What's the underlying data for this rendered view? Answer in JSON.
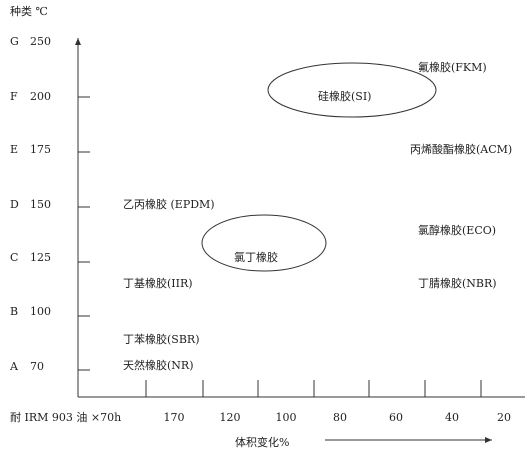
{
  "header": {
    "title": "种类 ℃"
  },
  "y_axis": {
    "levels": [
      {
        "grade": "G",
        "temp": "250"
      },
      {
        "grade": "F",
        "temp": "200"
      },
      {
        "grade": "E",
        "temp": "175"
      },
      {
        "grade": "D",
        "temp": "150"
      },
      {
        "grade": "C",
        "temp": "125"
      },
      {
        "grade": "B",
        "temp": "100"
      },
      {
        "grade": "A",
        "temp": "70"
      }
    ]
  },
  "x_axis": {
    "condition": "耐 IRM 903 油 ×70h",
    "labels": [
      "170",
      "120",
      "100",
      "80",
      "60",
      "40",
      "20"
    ],
    "caption": "体积变化%"
  },
  "materials": [
    "氟橡胶(FKM)",
    "硅橡胶(SI)",
    "丙烯酸酯橡胶(ACM)",
    "乙丙橡胶 (EPDM)",
    "氯丁橡胶",
    "氯醇橡胶(ECO)",
    "丁基橡胶(IIR)",
    "丁腈橡胶(NBR)",
    "丁苯橡胶(SBR)",
    "天然橡胶(NR)"
  ]
}
